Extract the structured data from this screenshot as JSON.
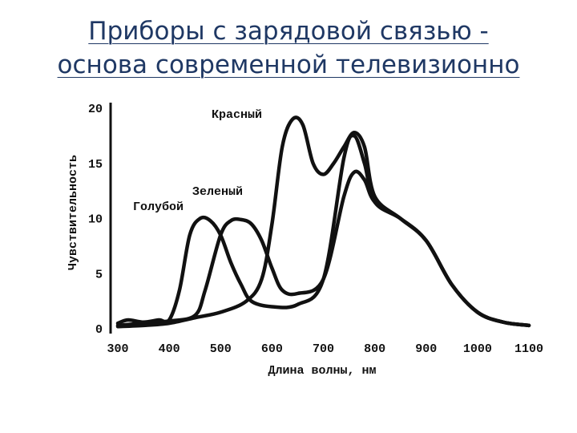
{
  "slide": {
    "title_line1": "Приборы с зарядовой связью -",
    "title_line2": "основа современной телевизионно"
  },
  "chart_data": {
    "type": "line",
    "xlabel": "Длина волны, нм",
    "ylabel": "Чувствительность",
    "xlim": [
      300,
      1100
    ],
    "ylim": [
      0,
      20
    ],
    "xticks": [
      300,
      400,
      500,
      600,
      700,
      800,
      900,
      1000,
      1100
    ],
    "yticks": [
      0,
      5,
      10,
      15,
      20
    ],
    "grid": false,
    "series": [
      {
        "name": "Голубой",
        "x": [
          300,
          320,
          350,
          380,
          400,
          420,
          440,
          460,
          480,
          500,
          520,
          540,
          560,
          600,
          650,
          700,
          740,
          760,
          780,
          800,
          850,
          900,
          950,
          1000,
          1050,
          1100
        ],
        "y": [
          0.5,
          0.8,
          0.6,
          0.8,
          0.8,
          3.5,
          8.5,
          10.0,
          9.8,
          8.5,
          6.0,
          4.0,
          2.5,
          2.0,
          2.2,
          4.5,
          15.5,
          17.5,
          15.0,
          11.5,
          10.0,
          8.0,
          4.0,
          1.5,
          0.6,
          0.3
        ]
      },
      {
        "name": "Зеленый",
        "x": [
          300,
          350,
          400,
          450,
          470,
          500,
          520,
          540,
          560,
          580,
          600,
          620,
          650,
          700,
          740,
          760,
          780,
          800,
          850,
          900,
          950,
          1000,
          1050,
          1100
        ],
        "y": [
          0.3,
          0.5,
          0.7,
          1.2,
          3.5,
          8.5,
          9.8,
          9.9,
          9.5,
          8.0,
          5.5,
          3.5,
          3.2,
          4.5,
          12.0,
          14.2,
          13.5,
          11.5,
          10.0,
          8.0,
          4.0,
          1.5,
          0.6,
          0.3
        ]
      },
      {
        "name": "Красный",
        "x": [
          300,
          350,
          400,
          450,
          500,
          550,
          580,
          600,
          620,
          640,
          660,
          680,
          700,
          720,
          740,
          760,
          780,
          800,
          850,
          900,
          950,
          1000,
          1050,
          1100
        ],
        "y": [
          0.2,
          0.3,
          0.5,
          1.0,
          1.5,
          2.5,
          4.5,
          9.5,
          16.5,
          19.0,
          18.5,
          15.0,
          14.0,
          15.0,
          16.5,
          17.8,
          16.5,
          12.0,
          10.0,
          8.0,
          4.0,
          1.5,
          0.6,
          0.3
        ]
      }
    ]
  }
}
